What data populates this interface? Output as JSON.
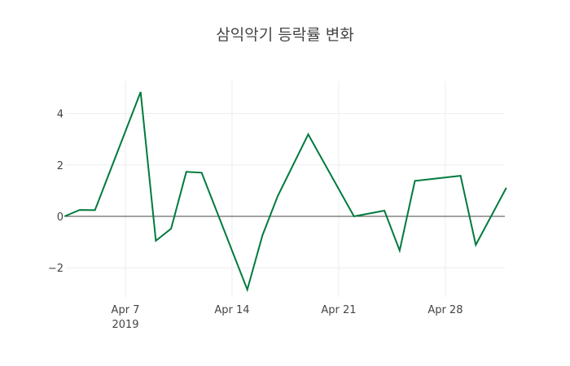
{
  "chart_data": {
    "type": "line",
    "title": "삼익악기 등락률 변화",
    "xlabel": "",
    "ylabel": "",
    "line_color": "#007a3d",
    "grid": true,
    "ylim": [
      -3.1,
      5.3
    ],
    "yticks": [
      -2,
      0,
      2,
      4
    ],
    "ytick_labels": [
      "−2",
      "0",
      "2",
      "4"
    ],
    "xticks": [
      {
        "date": "2019-04-07",
        "label": "Apr 7",
        "sublabel": "2019"
      },
      {
        "date": "2019-04-14",
        "label": "Apr 14",
        "sublabel": ""
      },
      {
        "date": "2019-04-21",
        "label": "Apr 21",
        "sublabel": ""
      },
      {
        "date": "2019-04-28",
        "label": "Apr 28",
        "sublabel": ""
      }
    ],
    "x": [
      "2019-04-03",
      "2019-04-04",
      "2019-04-05",
      "2019-04-08",
      "2019-04-09",
      "2019-04-10",
      "2019-04-11",
      "2019-04-12",
      "2019-04-15",
      "2019-04-16",
      "2019-04-17",
      "2019-04-19",
      "2019-04-22",
      "2019-04-24",
      "2019-04-25",
      "2019-04-26",
      "2019-04-29",
      "2019-04-30",
      "2019-05-02"
    ],
    "series": [
      {
        "name": "등락률",
        "values": [
          0.0,
          0.25,
          0.24,
          4.84,
          -0.95,
          -0.48,
          1.73,
          1.7,
          -2.85,
          -0.73,
          0.79,
          3.19,
          0.0,
          0.22,
          -1.33,
          1.38,
          1.58,
          -1.11,
          1.11
        ]
      }
    ]
  }
}
